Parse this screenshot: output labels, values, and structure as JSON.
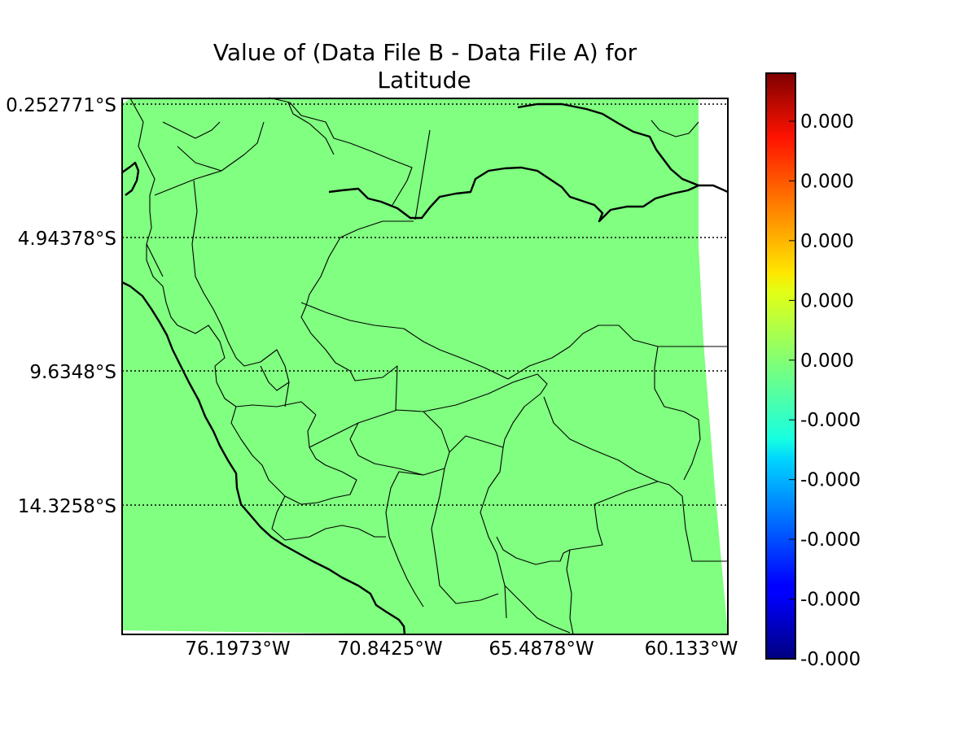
{
  "figure": {
    "title_line1": "Value of (Data File B - Data File A) for",
    "title_line2": "Latitude",
    "fill_color": "#80ff80",
    "background": "#ffffff"
  },
  "chart_data": {
    "type": "heatmap",
    "title": "Value of (Data File B - Data File A) for Latitude",
    "projection_grid": "dotted",
    "y_ticks": [
      "0.252771°S",
      "4.94378°S",
      "9.6348°S",
      "14.3258°S"
    ],
    "x_ticks": [
      "76.1973°W",
      "70.8425°W",
      "65.4878°W",
      "60.133°W"
    ],
    "y_ticks_deg": [
      -0.252771,
      -4.94378,
      -9.6348,
      -14.3258
    ],
    "x_ticks_deg": [
      -76.1973,
      -70.8425,
      -65.4878,
      -60.133
    ],
    "field_value": 0.0,
    "colorbar": {
      "colormap": "jet",
      "labels": [
        "0.000",
        "0.000",
        "0.000",
        "0.000",
        "0.000",
        "-0.000",
        "-0.000",
        "-0.000",
        "-0.000",
        "-0.000"
      ]
    }
  }
}
